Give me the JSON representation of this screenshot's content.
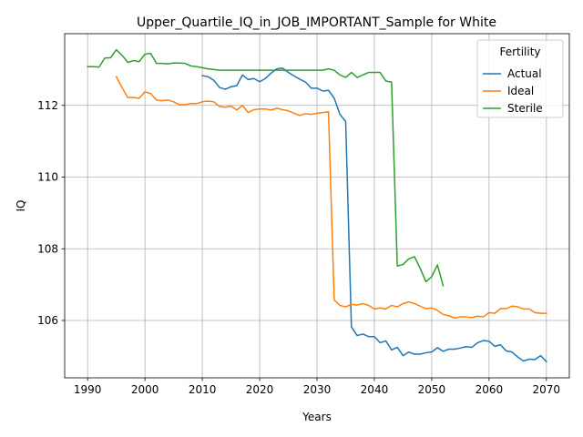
{
  "chart_data": {
    "type": "line",
    "title": "Upper_Quartile_IQ_in_JOB_IMPORTANT_Sample for White",
    "xlabel": "Years",
    "ylabel": "IQ",
    "xlim": [
      1986,
      2074
    ],
    "ylim": [
      104.4,
      114.0
    ],
    "xticks": [
      1990,
      2000,
      2010,
      2020,
      2030,
      2040,
      2050,
      2060,
      2070
    ],
    "yticks": [
      106,
      108,
      110,
      112
    ],
    "grid": true,
    "legend": {
      "title": "Fertility",
      "placement": "top-right"
    },
    "series": [
      {
        "name": "Actual",
        "color": "#1f77b4",
        "x": [
          2010,
          2011,
          2012,
          2013,
          2014,
          2015,
          2016,
          2017,
          2018,
          2019,
          2020,
          2021,
          2022,
          2023,
          2024,
          2025,
          2026,
          2027,
          2028,
          2029,
          2030,
          2031,
          2032,
          2033,
          2034,
          2035,
          2036,
          2037,
          2038,
          2039,
          2040,
          2041,
          2042,
          2043,
          2044,
          2045,
          2046,
          2047,
          2048,
          2049,
          2050,
          2051,
          2052,
          2053,
          2054,
          2055,
          2056,
          2057,
          2058,
          2059,
          2060,
          2061,
          2062,
          2063,
          2064,
          2065,
          2066,
          2067,
          2068,
          2069,
          2070
        ],
        "y": [
          112.83,
          112.8,
          112.7,
          112.5,
          112.45,
          112.52,
          112.55,
          112.85,
          112.72,
          112.75,
          112.66,
          112.75,
          112.9,
          113.02,
          113.04,
          112.92,
          112.82,
          112.73,
          112.65,
          112.48,
          112.48,
          112.4,
          112.42,
          112.2,
          111.75,
          111.55,
          105.82,
          105.58,
          105.62,
          105.55,
          105.55,
          105.38,
          105.43,
          105.18,
          105.25,
          105.02,
          105.12,
          105.06,
          105.06,
          105.1,
          105.12,
          105.24,
          105.14,
          105.2,
          105.2,
          105.23,
          105.27,
          105.25,
          105.38,
          105.44,
          105.42,
          105.28,
          105.32,
          105.15,
          105.12,
          104.98,
          104.87,
          104.92,
          104.91,
          105.02,
          104.85
        ]
      },
      {
        "name": "Ideal",
        "color": "#ff7f0e",
        "x": [
          1995,
          1996,
          1997,
          1998,
          1999,
          2000,
          2001,
          2002,
          2003,
          2004,
          2005,
          2006,
          2007,
          2008,
          2009,
          2010,
          2011,
          2012,
          2013,
          2014,
          2015,
          2016,
          2017,
          2018,
          2019,
          2020,
          2021,
          2022,
          2023,
          2024,
          2025,
          2026,
          2027,
          2028,
          2029,
          2030,
          2031,
          2032,
          2033,
          2034,
          2035,
          2036,
          2037,
          2038,
          2039,
          2040,
          2041,
          2042,
          2043,
          2044,
          2045,
          2046,
          2047,
          2048,
          2049,
          2050,
          2051,
          2052,
          2053,
          2054,
          2055,
          2056,
          2057,
          2058,
          2059,
          2060,
          2061,
          2062,
          2063,
          2064,
          2065,
          2066,
          2067,
          2068,
          2069,
          2070
        ],
        "y": [
          112.8,
          112.5,
          112.22,
          112.22,
          112.2,
          112.38,
          112.33,
          112.15,
          112.13,
          112.15,
          112.1,
          112.02,
          112.02,
          112.05,
          112.05,
          112.1,
          112.12,
          112.1,
          111.97,
          111.95,
          111.98,
          111.87,
          112.0,
          111.8,
          111.88,
          111.9,
          111.9,
          111.87,
          111.92,
          111.88,
          111.85,
          111.78,
          111.72,
          111.77,
          111.75,
          111.78,
          111.8,
          111.82,
          106.57,
          106.42,
          106.38,
          106.45,
          106.43,
          106.47,
          106.42,
          106.32,
          106.35,
          106.32,
          106.42,
          106.38,
          106.47,
          106.52,
          106.47,
          106.4,
          106.33,
          106.35,
          106.28,
          106.17,
          106.13,
          106.07,
          106.1,
          106.1,
          106.08,
          106.12,
          106.1,
          106.22,
          106.2,
          106.33,
          106.33,
          106.4,
          106.38,
          106.32,
          106.32,
          106.22,
          106.2,
          106.2
        ]
      },
      {
        "name": "Sterile",
        "color": "#2ca02c",
        "x": [
          1990,
          1991,
          1992,
          1993,
          1994,
          1995,
          1996,
          1997,
          1998,
          1999,
          2000,
          2001,
          2002,
          2003,
          2004,
          2005,
          2006,
          2007,
          2008,
          2009,
          2010,
          2011,
          2012,
          2013,
          2014,
          2015,
          2016,
          2017,
          2018,
          2019,
          2020,
          2021,
          2022,
          2023,
          2024,
          2025,
          2026,
          2027,
          2028,
          2029,
          2030,
          2031,
          2032,
          2033,
          2034,
          2035,
          2036,
          2037,
          2038,
          2039,
          2040,
          2041,
          2042,
          2043,
          2044,
          2045,
          2046,
          2047,
          2048,
          2049,
          2050,
          2051,
          2052
        ],
        "y": [
          113.08,
          113.08,
          113.07,
          113.32,
          113.33,
          113.55,
          113.4,
          113.2,
          113.25,
          113.22,
          113.43,
          113.45,
          113.17,
          113.17,
          113.16,
          113.18,
          113.18,
          113.17,
          113.1,
          113.08,
          113.05,
          113.02,
          113.0,
          112.98,
          112.98,
          112.98,
          112.98,
          112.98,
          112.98,
          112.98,
          112.98,
          112.98,
          112.98,
          112.98,
          112.98,
          112.98,
          112.98,
          112.98,
          112.98,
          112.98,
          112.98,
          112.98,
          113.02,
          112.98,
          112.85,
          112.78,
          112.92,
          112.78,
          112.85,
          112.92,
          112.92,
          112.92,
          112.68,
          112.65,
          107.52,
          107.56,
          107.72,
          107.78,
          107.45,
          107.08,
          107.22,
          107.55,
          106.97
        ]
      }
    ]
  }
}
